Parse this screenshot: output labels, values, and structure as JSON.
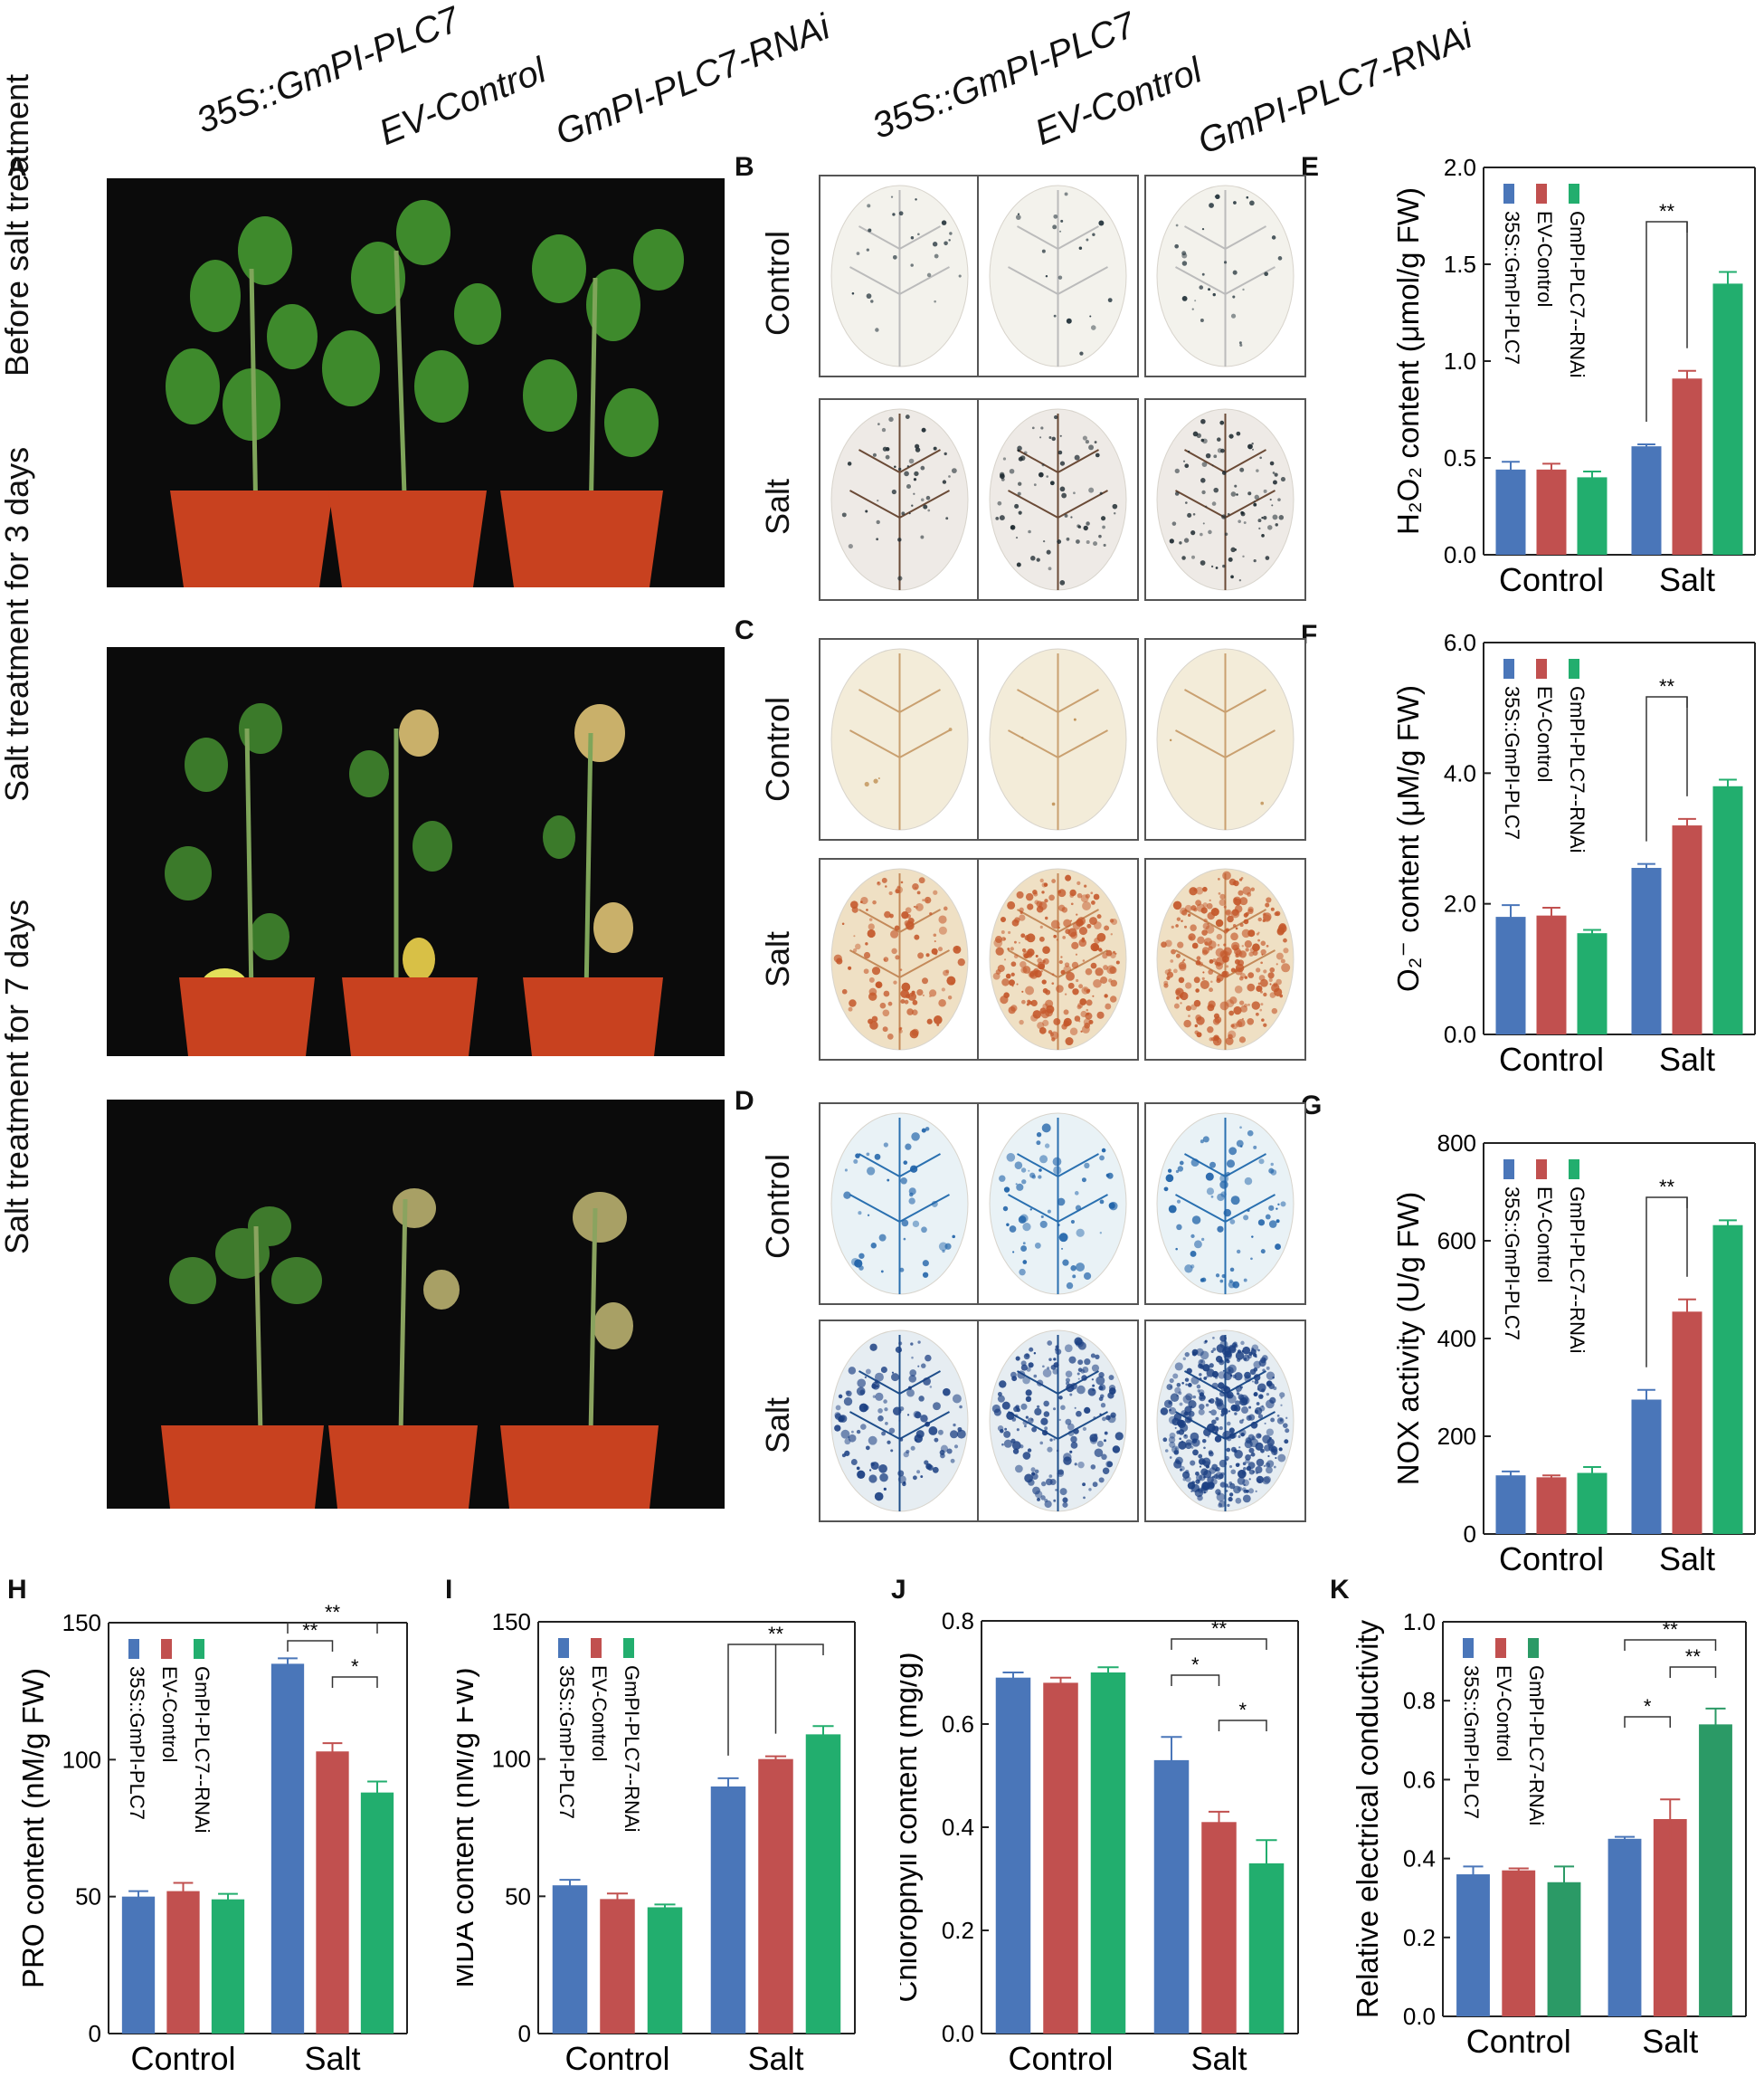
{
  "genotypes": [
    "35S::GmPI-PLC7",
    "EV-Control",
    "GmPI-PLC7-RNAi"
  ],
  "panel_letters": {
    "A": "A",
    "B": "B",
    "C": "C",
    "D": "D",
    "E": "E",
    "F": "F",
    "G": "G",
    "H": "H",
    "I": "I",
    "J": "J",
    "K": "K"
  },
  "photo_rows": [
    "Before salt treatment",
    "Salt treatment for 3 days",
    "Salt treatment for 7 days"
  ],
  "stain_rows": [
    "Control",
    "Salt"
  ],
  "colors": {
    "blue": "#4a76b9",
    "red": "#c1504f",
    "green": "#22ae6e",
    "green_k": "#2b9a66"
  },
  "chart_data": [
    {
      "panel": "E",
      "type": "bar",
      "ylabel": "H₂O₂ content (μmol/g FW)",
      "categories": [
        "Control",
        "Salt"
      ],
      "ylim": [
        0,
        2.0
      ],
      "yticks": [
        "0.0",
        "0.5",
        "1.0",
        "1.5",
        "2.0"
      ],
      "legend": [
        "35S::GmPI-PLC7",
        "EV-Control",
        "GmPI-PLC7--RNAi"
      ],
      "series": [
        {
          "name": "35S::GmPI-PLC7",
          "values": [
            0.44,
            0.56
          ],
          "err": [
            0.04,
            0.01
          ]
        },
        {
          "name": "EV-Control",
          "values": [
            0.44,
            0.91
          ],
          "err": [
            0.03,
            0.04
          ]
        },
        {
          "name": "GmPI-PLC7--RNAi",
          "values": [
            0.4,
            1.4
          ],
          "err": [
            0.03,
            0.06
          ]
        }
      ],
      "sig": [
        {
          "text": "**"
        }
      ]
    },
    {
      "panel": "F",
      "type": "bar",
      "ylabel": "O₂⁻ content (μM/g FW)",
      "categories": [
        "Control",
        "Salt"
      ],
      "ylim": [
        0,
        6.0
      ],
      "yticks": [
        "0.0",
        "2.0",
        "4.0",
        "6.0"
      ],
      "legend": [
        "35S::GmPI-PLC7",
        "EV-Control",
        "GmPI-PLC7--RNAi"
      ],
      "series": [
        {
          "name": "35S::GmPI-PLC7",
          "values": [
            1.8,
            2.55
          ],
          "err": [
            0.18,
            0.06
          ]
        },
        {
          "name": "EV-Control",
          "values": [
            1.82,
            3.2
          ],
          "err": [
            0.12,
            0.1
          ]
        },
        {
          "name": "GmPI-PLC7--RNAi",
          "values": [
            1.55,
            3.8
          ],
          "err": [
            0.05,
            0.1
          ]
        }
      ],
      "sig": [
        {
          "text": "**"
        }
      ]
    },
    {
      "panel": "G",
      "type": "bar",
      "ylabel": "NOX activity (U/g FW)",
      "categories": [
        "Control",
        "Salt"
      ],
      "ylim": [
        0,
        800
      ],
      "yticks": [
        "0",
        "200",
        "400",
        "600",
        "800"
      ],
      "legend": [
        "35S::GmPI-PLC7",
        "EV-Control",
        "GmPI-PLC7--RNAi"
      ],
      "series": [
        {
          "name": "35S::GmPI-PLC7",
          "values": [
            120,
            275
          ],
          "err": [
            8,
            20
          ]
        },
        {
          "name": "EV-Control",
          "values": [
            116,
            455
          ],
          "err": [
            4,
            25
          ]
        },
        {
          "name": "GmPI-PLC7--RNAi",
          "values": [
            125,
            632
          ],
          "err": [
            12,
            10
          ]
        }
      ],
      "sig": [
        {
          "text": "**"
        }
      ]
    },
    {
      "panel": "H",
      "type": "bar",
      "ylabel": "PRO content (nM/g FW)",
      "categories": [
        "Control",
        "Salt"
      ],
      "ylim": [
        0,
        150
      ],
      "yticks": [
        "0",
        "50",
        "100",
        "150"
      ],
      "legend": [
        "35S::GmPI-PLC7",
        "EV-Control",
        "GmPI-PLC7--RNAi"
      ],
      "series": [
        {
          "name": "35S::GmPI-PLC7",
          "values": [
            50,
            135
          ],
          "err": [
            2,
            2
          ]
        },
        {
          "name": "EV-Control",
          "values": [
            52,
            103
          ],
          "err": [
            3,
            3
          ]
        },
        {
          "name": "GmPI-PLC7--RNAi",
          "values": [
            49,
            88
          ],
          "err": [
            2,
            4
          ]
        }
      ],
      "sig": [
        {
          "text": "**"
        },
        {
          "text": "**"
        },
        {
          "text": "*"
        }
      ]
    },
    {
      "panel": "I",
      "type": "bar",
      "ylabel": "MDA content (nM/g FW)",
      "categories": [
        "Control",
        "Salt"
      ],
      "ylim": [
        0,
        150
      ],
      "yticks": [
        "0",
        "50",
        "100",
        "150"
      ],
      "legend": [
        "35S::GmPI-PLC7",
        "EV-Control",
        "GmPI-PLC7--RNAi"
      ],
      "series": [
        {
          "name": "35S::GmPI-PLC7",
          "values": [
            54,
            90
          ],
          "err": [
            2,
            3
          ]
        },
        {
          "name": "EV-Control",
          "values": [
            49,
            100
          ],
          "err": [
            2,
            1
          ]
        },
        {
          "name": "GmPI-PLC7--RNAi",
          "values": [
            46,
            109
          ],
          "err": [
            1,
            3
          ]
        }
      ],
      "sig": [
        {
          "text": "**"
        }
      ]
    },
    {
      "panel": "J",
      "type": "bar",
      "ylabel": "Chlorophyll content (mg/g)",
      "categories": [
        "Control",
        "Salt"
      ],
      "ylim": [
        0,
        0.8
      ],
      "yticks": [
        "0.0",
        "0.2",
        "0.4",
        "0.6",
        "0.8"
      ],
      "legend": [],
      "series": [
        {
          "name": "",
          "values": [
            0.69,
            0.53
          ],
          "err": [
            0.01,
            0.045
          ]
        },
        {
          "name": "",
          "values": [
            0.68,
            0.41
          ],
          "err": [
            0.01,
            0.02
          ]
        },
        {
          "name": "",
          "values": [
            0.7,
            0.33
          ],
          "err": [
            0.01,
            0.045
          ]
        }
      ],
      "sig": [
        {
          "text": "**"
        },
        {
          "text": "*"
        },
        {
          "text": "*"
        }
      ]
    },
    {
      "panel": "K",
      "type": "bar",
      "ylabel": "Relative electrical conductivity",
      "categories": [
        "Control",
        "Salt"
      ],
      "ylim": [
        0,
        1.0
      ],
      "yticks": [
        "0.0",
        "0.2",
        "0.4",
        "0.6",
        "0.8",
        "1.0"
      ],
      "legend": [
        "35S::GmPI-PLC7",
        "EV-Control",
        "GmPI-PLC7-RNAi"
      ],
      "series": [
        {
          "name": "35S::GmPI-PLC7",
          "values": [
            0.36,
            0.45
          ],
          "err": [
            0.02,
            0.005
          ]
        },
        {
          "name": "EV-Control",
          "values": [
            0.37,
            0.5
          ],
          "err": [
            0.005,
            0.05
          ]
        },
        {
          "name": "GmPI-PLC7-RNAi",
          "values": [
            0.34,
            0.74
          ],
          "err": [
            0.04,
            0.04
          ]
        }
      ],
      "sig": [
        {
          "text": "**"
        },
        {
          "text": "**"
        },
        {
          "text": "*"
        }
      ]
    }
  ]
}
